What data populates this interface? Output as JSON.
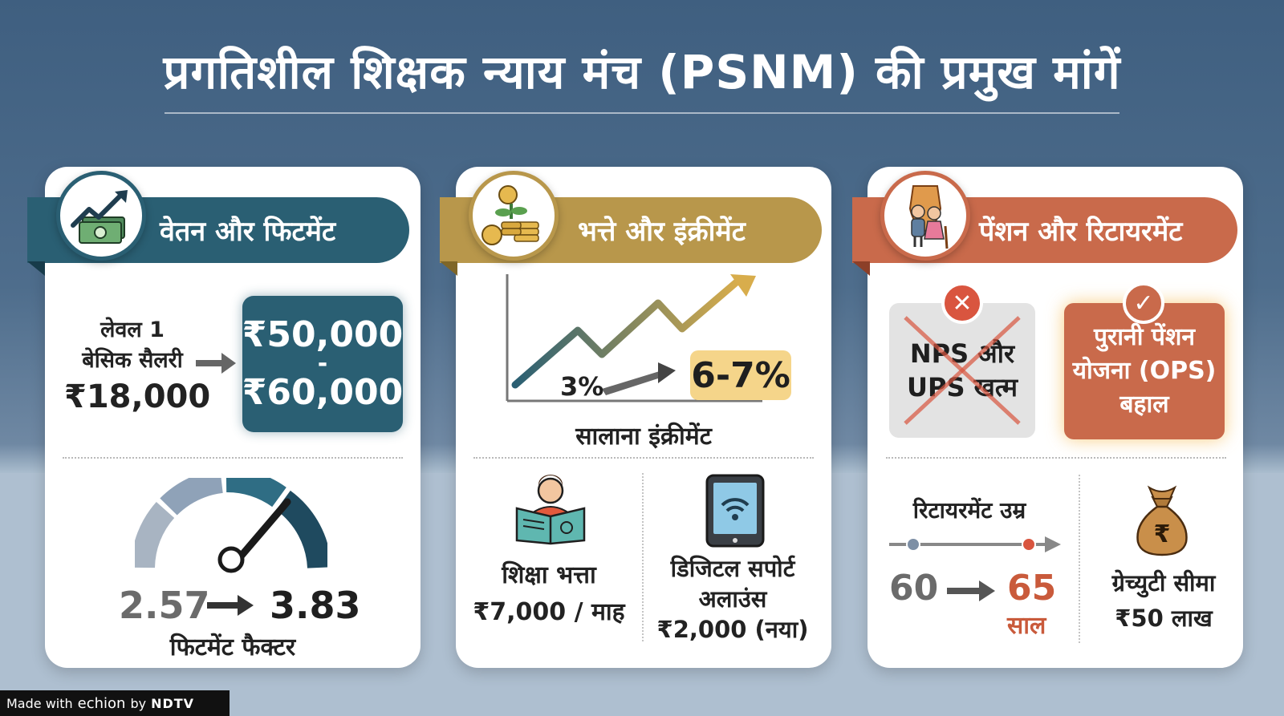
{
  "title": "प्रगतिशील शिक्षक न्याय मंच (PSNM) की प्रमुख मांगें",
  "colors": {
    "teal": "#2a5f73",
    "gold": "#b8974b",
    "terracotta": "#c96a4b"
  },
  "card_salary": {
    "heading": "वेतन और फिटमेंट",
    "icon": "money-growth-icon",
    "level_line1": "लेवल 1",
    "level_line2": "बेसिक सैलरी",
    "basic_salary": "₹18,000",
    "range_min": "₹50,000",
    "range_sep": "-",
    "range_max": "₹60,000",
    "fitment_old": "2.57",
    "fitment_new": "3.83",
    "fitment_label": "फिटमेंट फैक्टर"
  },
  "card_allowance": {
    "heading": "भत्ते और इंक्रीमेंट",
    "icon": "coins-plant-icon",
    "increment_old": "3%",
    "increment_new": "6-7%",
    "increment_label": "सालाना इंक्रीमेंट",
    "edu_label": "शिक्षा भत्ता",
    "edu_value": "₹7,000 / माह",
    "digital_line1": "डिजिटल सपोर्ट",
    "digital_line2": "अलाउंस",
    "digital_value": "₹2,000 (नया)"
  },
  "card_pension": {
    "heading": "पेंशन और रिटायरमेंट",
    "icon": "elderly-shield-icon",
    "nps_line1": "NPS और",
    "nps_line2": "UPS खत्म",
    "ops_line1": "पुरानी पेंशन",
    "ops_line2": "योजना (OPS)",
    "ops_line3": "बहाल",
    "retirement_label": "रिटायरमेंट उम्र",
    "age_old": "60",
    "age_new": "65",
    "age_unit": "साल",
    "gratuity_label": "ग्रेच्युटी सीमा",
    "gratuity_value": "₹50 लाख",
    "rupee_symbol": "₹"
  },
  "footer": {
    "made_with": "Made with",
    "brand": "echion",
    "by": "by",
    "publisher": "NDTV"
  }
}
